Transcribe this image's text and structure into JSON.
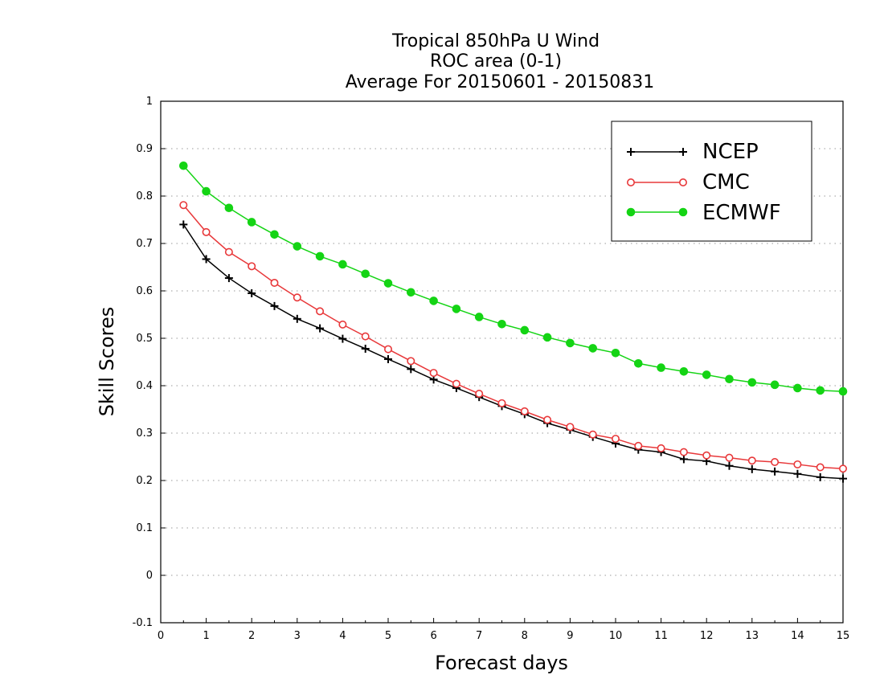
{
  "chart_data": {
    "type": "line",
    "title_lines": [
      "Tropical 850hPa U Wind",
      "ROC area (0-1)",
      "Average For 20150601 - 20150831"
    ],
    "xlabel": "Forecast days",
    "ylabel": "Skill Scores",
    "xlim": [
      0,
      15
    ],
    "ylim": [
      -0.1,
      1
    ],
    "x_ticks": [
      "0",
      "1",
      "2",
      "3",
      "4",
      "5",
      "6",
      "7",
      "8",
      "9",
      "10",
      "11",
      "12",
      "13",
      "14",
      "15"
    ],
    "y_ticks": [
      "-0.1",
      "0",
      "0.1",
      "0.2",
      "0.3",
      "0.4",
      "0.5",
      "0.6",
      "0.7",
      "0.8",
      "0.9",
      "1"
    ],
    "grid": "horizontal dotted",
    "legend_position": "top-right",
    "x": [
      0.5,
      1,
      1.5,
      2,
      2.5,
      3,
      3.5,
      4,
      4.5,
      5,
      5.5,
      6,
      6.5,
      7,
      7.5,
      8,
      8.5,
      9,
      9.5,
      10,
      10.5,
      11,
      11.5,
      12,
      12.5,
      13,
      13.5,
      14,
      14.5,
      15
    ],
    "series": [
      {
        "name": "NCEP",
        "color": "#000000",
        "marker": "plus",
        "values": [
          0.74,
          0.667,
          0.627,
          0.595,
          0.568,
          0.541,
          0.521,
          0.499,
          0.478,
          0.456,
          0.435,
          0.413,
          0.395,
          0.376,
          0.357,
          0.34,
          0.321,
          0.307,
          0.292,
          0.278,
          0.265,
          0.26,
          0.245,
          0.241,
          0.231,
          0.224,
          0.219,
          0.214,
          0.207,
          0.204
        ]
      },
      {
        "name": "CMC",
        "color": "#e8383a",
        "marker": "open-circle",
        "values": [
          0.781,
          0.724,
          0.682,
          0.652,
          0.617,
          0.586,
          0.557,
          0.529,
          0.504,
          0.477,
          0.452,
          0.427,
          0.404,
          0.383,
          0.363,
          0.346,
          0.328,
          0.313,
          0.297,
          0.288,
          0.273,
          0.268,
          0.26,
          0.253,
          0.248,
          0.242,
          0.239,
          0.234,
          0.228,
          0.225
        ]
      },
      {
        "name": "ECMWF",
        "color": "#14d414",
        "marker": "filled-circle",
        "values": [
          0.864,
          0.81,
          0.775,
          0.745,
          0.719,
          0.694,
          0.673,
          0.656,
          0.636,
          0.616,
          0.597,
          0.579,
          0.562,
          0.545,
          0.53,
          0.517,
          0.502,
          0.49,
          0.479,
          0.469,
          0.447,
          0.438,
          0.43,
          0.423,
          0.414,
          0.407,
          0.402,
          0.395,
          0.39,
          0.388
        ]
      }
    ]
  }
}
